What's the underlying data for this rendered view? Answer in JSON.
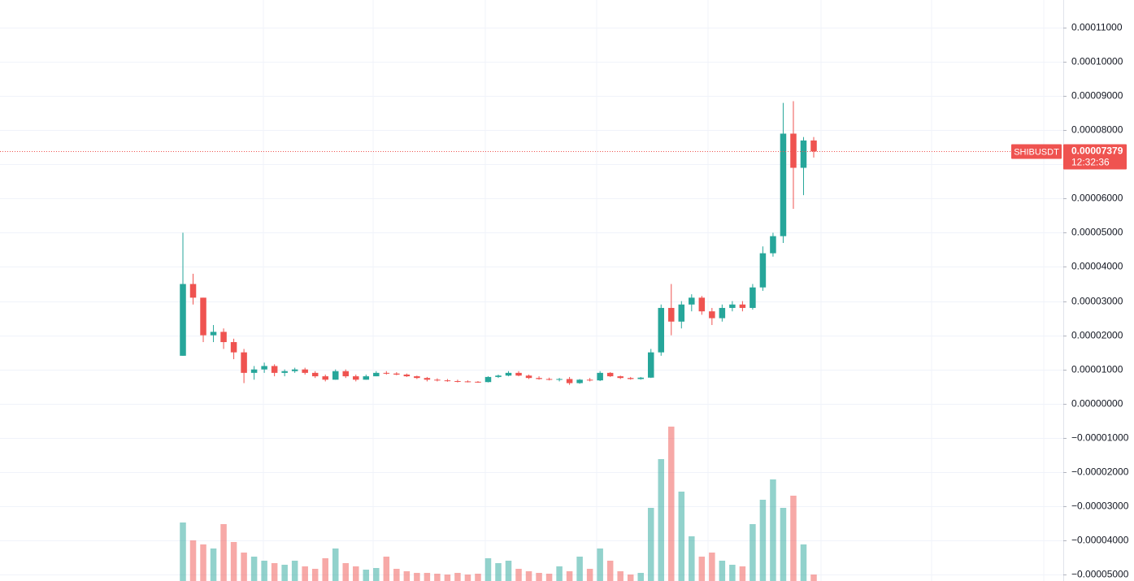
{
  "chart_data": {
    "type": "candlestick",
    "symbol": "SHIBUSDT",
    "last_price": {
      "value": 7.379e-05,
      "label": "0.00007379"
    },
    "countdown": "12:32:36",
    "up_color": "#26a69a",
    "down_color": "#ef5350",
    "ylim": [
      -5.19e-05,
      0.0001181
    ],
    "yticks": [
      {
        "value": 0.00011,
        "label": "0.00011000"
      },
      {
        "value": 0.0001,
        "label": "0.00010000"
      },
      {
        "value": 9e-05,
        "label": "0.00009000"
      },
      {
        "value": 8e-05,
        "label": "0.00008000"
      },
      {
        "value": 7e-05,
        "label": "0.00007000"
      },
      {
        "value": 6e-05,
        "label": "0.00006000"
      },
      {
        "value": 5e-05,
        "label": "0.00005000"
      },
      {
        "value": 4e-05,
        "label": "0.00004000"
      },
      {
        "value": 3e-05,
        "label": "0.00003000"
      },
      {
        "value": 2e-05,
        "label": "0.00002000"
      },
      {
        "value": 1e-05,
        "label": "0.00001000"
      },
      {
        "value": 0,
        "label": "0.00000000"
      },
      {
        "value": -1e-05,
        "label": "−0.00001000"
      },
      {
        "value": -2e-05,
        "label": "−0.00002000"
      },
      {
        "value": -3e-05,
        "label": "−0.00003000"
      },
      {
        "value": -4e-05,
        "label": "−0.00004000"
      },
      {
        "value": -5e-05,
        "label": "−0.00005000"
      }
    ],
    "grid": true,
    "open": [
      1.4e-05,
      3.5e-05,
      3.1e-05,
      2e-05,
      2.1e-05,
      1.8e-05,
      1.5e-05,
      9e-06,
      1e-05,
      1.1e-05,
      9e-06,
      9.5e-06,
      1e-05,
      9e-06,
      8e-06,
      7e-06,
      9.5e-06,
      8e-06,
      7e-06,
      8e-06,
      9e-06,
      8.8e-06,
      8.5e-06,
      8e-06,
      7.5e-06,
      7e-06,
      6.8e-06,
      6.6e-06,
      6.5e-06,
      6.4e-06,
      6.3e-06,
      7.8e-06,
      8.2e-06,
      9e-06,
      8.2e-06,
      7.5e-06,
      7.2e-06,
      7e-06,
      7.2e-06,
      6e-06,
      7e-06,
      6.8e-06,
      9e-06,
      8e-06,
      7.5e-06,
      7.2e-06,
      7.6e-06,
      1.5e-05,
      2.8e-05,
      2.4e-05,
      2.9e-05,
      3.1e-05,
      2.7e-05,
      2.5e-05,
      2.8e-05,
      2.9e-05,
      2.8e-05,
      3.4e-05,
      4.4e-05,
      4.9e-05,
      7.9e-05,
      6.9e-05,
      7.7e-05
    ],
    "high": [
      5e-05,
      3.8e-05,
      3.1e-05,
      2.3e-05,
      2.2e-05,
      1.9e-05,
      1.6e-05,
      1.1e-05,
      1.2e-05,
      1.15e-05,
      1e-05,
      1.05e-05,
      1.05e-05,
      9.5e-06,
      8.5e-06,
      1e-05,
      1e-05,
      8.5e-06,
      8.5e-06,
      9.5e-06,
      9.5e-06,
      9.2e-06,
      8.8e-06,
      8.2e-06,
      7.8e-06,
      7.4e-06,
      7.2e-06,
      7e-06,
      6.8e-06,
      6.6e-06,
      8e-06,
      8.5e-06,
      9.5e-06,
      9.5e-06,
      8.5e-06,
      8e-06,
      7.6e-06,
      7.5e-06,
      7.8e-06,
      7.2e-06,
      7.5e-06,
      9.5e-06,
      9.2e-06,
      8.2e-06,
      7.8e-06,
      7.8e-06,
      1.6e-05,
      2.9e-05,
      3.5e-05,
      3e-05,
      3.2e-05,
      3.15e-05,
      2.8e-05,
      2.9e-05,
      3e-05,
      3e-05,
      3.5e-05,
      4.6e-05,
      5e-05,
      8.8e-05,
      8.85e-05,
      7.8e-05,
      7.8e-05
    ],
    "low": [
      1.4e-05,
      2.9e-05,
      1.8e-05,
      1.8e-05,
      1.6e-05,
      1.3e-05,
      6e-06,
      7e-06,
      9e-06,
      8e-06,
      8e-06,
      9e-06,
      8.5e-06,
      7.5e-06,
      6.5e-06,
      7e-06,
      7.5e-06,
      6.5e-06,
      7e-06,
      8e-06,
      8.5e-06,
      8.3e-06,
      7.8e-06,
      7.2e-06,
      6.5e-06,
      6.5e-06,
      6.4e-06,
      6.2e-06,
      6.2e-06,
      6.1e-06,
      6.2e-06,
      7.5e-06,
      8e-06,
      8e-06,
      7.2e-06,
      7e-06,
      6.8e-06,
      6.5e-06,
      5.5e-06,
      5.8e-06,
      6.5e-06,
      6.6e-06,
      7.8e-06,
      7.2e-06,
      7e-06,
      7e-06,
      7.5e-06,
      1.4e-05,
      2e-05,
      2.2e-05,
      2.7e-05,
      2.6e-05,
      2.3e-05,
      2.4e-05,
      2.7e-05,
      2.7e-05,
      2.75e-05,
      3.3e-05,
      4.3e-05,
      4.7e-05,
      5.7e-05,
      6.1e-05,
      7.2e-05
    ],
    "close": [
      3.5e-05,
      3.1e-05,
      2e-05,
      2.1e-05,
      1.8e-05,
      1.5e-05,
      9e-06,
      1e-05,
      1.1e-05,
      9e-06,
      9.5e-06,
      1e-05,
      9e-06,
      8e-06,
      7e-06,
      9.5e-06,
      8e-06,
      7e-06,
      8e-06,
      9e-06,
      8.8e-06,
      8.5e-06,
      8e-06,
      7.5e-06,
      7e-06,
      6.8e-06,
      6.6e-06,
      6.5e-06,
      6.4e-06,
      6.3e-06,
      7.8e-06,
      8.2e-06,
      9e-06,
      8.2e-06,
      7.5e-06,
      7.2e-06,
      7e-06,
      7.2e-06,
      6e-06,
      7e-06,
      6.8e-06,
      9e-06,
      8e-06,
      7.5e-06,
      7.2e-06,
      7.6e-06,
      1.5e-05,
      2.8e-05,
      2.4e-05,
      2.9e-05,
      3.1e-05,
      2.7e-05,
      2.5e-05,
      2.8e-05,
      2.9e-05,
      2.8e-05,
      3.4e-05,
      4.4e-05,
      4.9e-05,
      7.9e-05,
      6.9e-05,
      7.7e-05,
      7.379e-05
    ],
    "volume": [
      72,
      50,
      45,
      40,
      70,
      48,
      35,
      30,
      25,
      22,
      20,
      25,
      18,
      15,
      28,
      40,
      22,
      18,
      14,
      16,
      30,
      15,
      12,
      10,
      10,
      9,
      8,
      10,
      8,
      9,
      28,
      22,
      25,
      15,
      12,
      10,
      9,
      18,
      12,
      30,
      15,
      40,
      25,
      12,
      8,
      10,
      90,
      150,
      190,
      110,
      55,
      30,
      35,
      25,
      20,
      18,
      70,
      100,
      125,
      90,
      105,
      45,
      8
    ]
  }
}
